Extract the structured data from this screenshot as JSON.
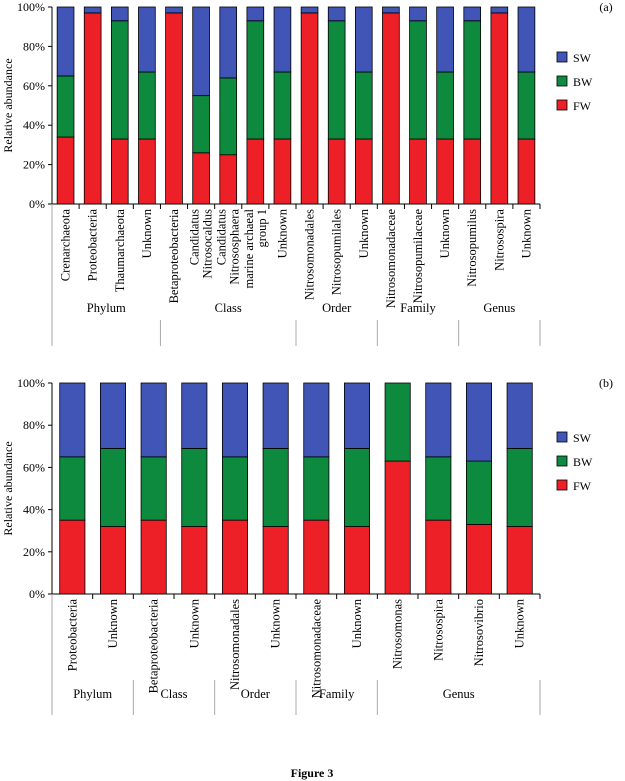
{
  "figure_caption": "Figure 3",
  "colors": {
    "SW": "#4055b5",
    "BW": "#0e8a3e",
    "FW": "#ee2027"
  },
  "chart_data": [
    {
      "type": "bar",
      "stacked": true,
      "panel_label": "(a)",
      "ylabel": "Relative abundance",
      "ylim": [
        0,
        100
      ],
      "yticks": [
        "0%",
        "20%",
        "40%",
        "60%",
        "80%",
        "100%"
      ],
      "legend": [
        "SW",
        "BW",
        "FW"
      ],
      "legend_position": "right",
      "categories": [
        [
          "Crenarchaeota"
        ],
        [
          "Proteobacteria"
        ],
        [
          "Thaumarchaeota"
        ],
        [
          "Unknown"
        ],
        [
          "Betaproteobacteria"
        ],
        [
          "Candidatus",
          "Nitrosocaldus"
        ],
        [
          "Candidatus",
          "Nitrososphaera"
        ],
        [
          "marine archaeal",
          "group 1"
        ],
        [
          "Unknown"
        ],
        [
          "Nitrosomonadales"
        ],
        [
          "Nitrosopumilales"
        ],
        [
          "Unknown"
        ],
        [
          "Nitrosomonadaceae"
        ],
        [
          "Nitrosopumilaceae"
        ],
        [
          "Unknown"
        ],
        [
          "Nitrosopumilus"
        ],
        [
          "Nitrosospira"
        ],
        [
          "Unknown"
        ]
      ],
      "groups": [
        {
          "name": "Phylum",
          "start": 0,
          "end": 3
        },
        {
          "name": "Class",
          "start": 4,
          "end": 8
        },
        {
          "name": "Order",
          "start": 9,
          "end": 11
        },
        {
          "name": "Family",
          "start": 12,
          "end": 14
        },
        {
          "name": "Genus",
          "start": 15,
          "end": 17
        }
      ],
      "series": [
        {
          "name": "FW",
          "values": [
            34,
            97,
            33,
            33,
            97,
            26,
            25,
            33,
            33,
            97,
            33,
            33,
            97,
            33,
            33,
            33,
            97,
            33
          ]
        },
        {
          "name": "BW",
          "values": [
            31,
            0,
            60,
            34,
            0,
            29,
            39,
            60,
            34,
            0,
            60,
            34,
            0,
            60,
            34,
            60,
            0,
            34
          ]
        },
        {
          "name": "SW",
          "values": [
            35,
            3,
            7,
            33,
            3,
            45,
            36,
            7,
            33,
            3,
            7,
            33,
            3,
            7,
            33,
            7,
            3,
            33
          ]
        }
      ]
    },
    {
      "type": "bar",
      "stacked": true,
      "panel_label": "(b)",
      "ylabel": "Relative abundance",
      "ylim": [
        0,
        100
      ],
      "yticks": [
        "0%",
        "20%",
        "40%",
        "60%",
        "80%",
        "100%"
      ],
      "legend": [
        "SW",
        "BW",
        "FW"
      ],
      "legend_position": "right",
      "categories": [
        [
          "Proteobacteria"
        ],
        [
          "Unknown"
        ],
        [
          "Betaproteobacteria"
        ],
        [
          "Unknown"
        ],
        [
          "Nitrosomonadales"
        ],
        [
          "Unknown"
        ],
        [
          "Nitrosomonadaceae"
        ],
        [
          "Unknown"
        ],
        [
          "Nitrosomonas"
        ],
        [
          "Nitrosospira"
        ],
        [
          "Nitrosovibrio"
        ],
        [
          "Unknown"
        ]
      ],
      "groups": [
        {
          "name": "Phylum",
          "start": 0,
          "end": 1
        },
        {
          "name": "Class",
          "start": 2,
          "end": 3
        },
        {
          "name": "Order",
          "start": 4,
          "end": 5
        },
        {
          "name": "Family",
          "start": 6,
          "end": 7
        },
        {
          "name": "Genus",
          "start": 8,
          "end": 11
        }
      ],
      "series": [
        {
          "name": "FW",
          "values": [
            35,
            32,
            35,
            32,
            35,
            32,
            35,
            32,
            63,
            35,
            33,
            32
          ]
        },
        {
          "name": "BW",
          "values": [
            30,
            37,
            30,
            37,
            30,
            37,
            30,
            37,
            37,
            30,
            30,
            37
          ]
        },
        {
          "name": "SW",
          "values": [
            35,
            31,
            35,
            31,
            35,
            31,
            35,
            31,
            0,
            35,
            37,
            31
          ]
        }
      ]
    }
  ]
}
